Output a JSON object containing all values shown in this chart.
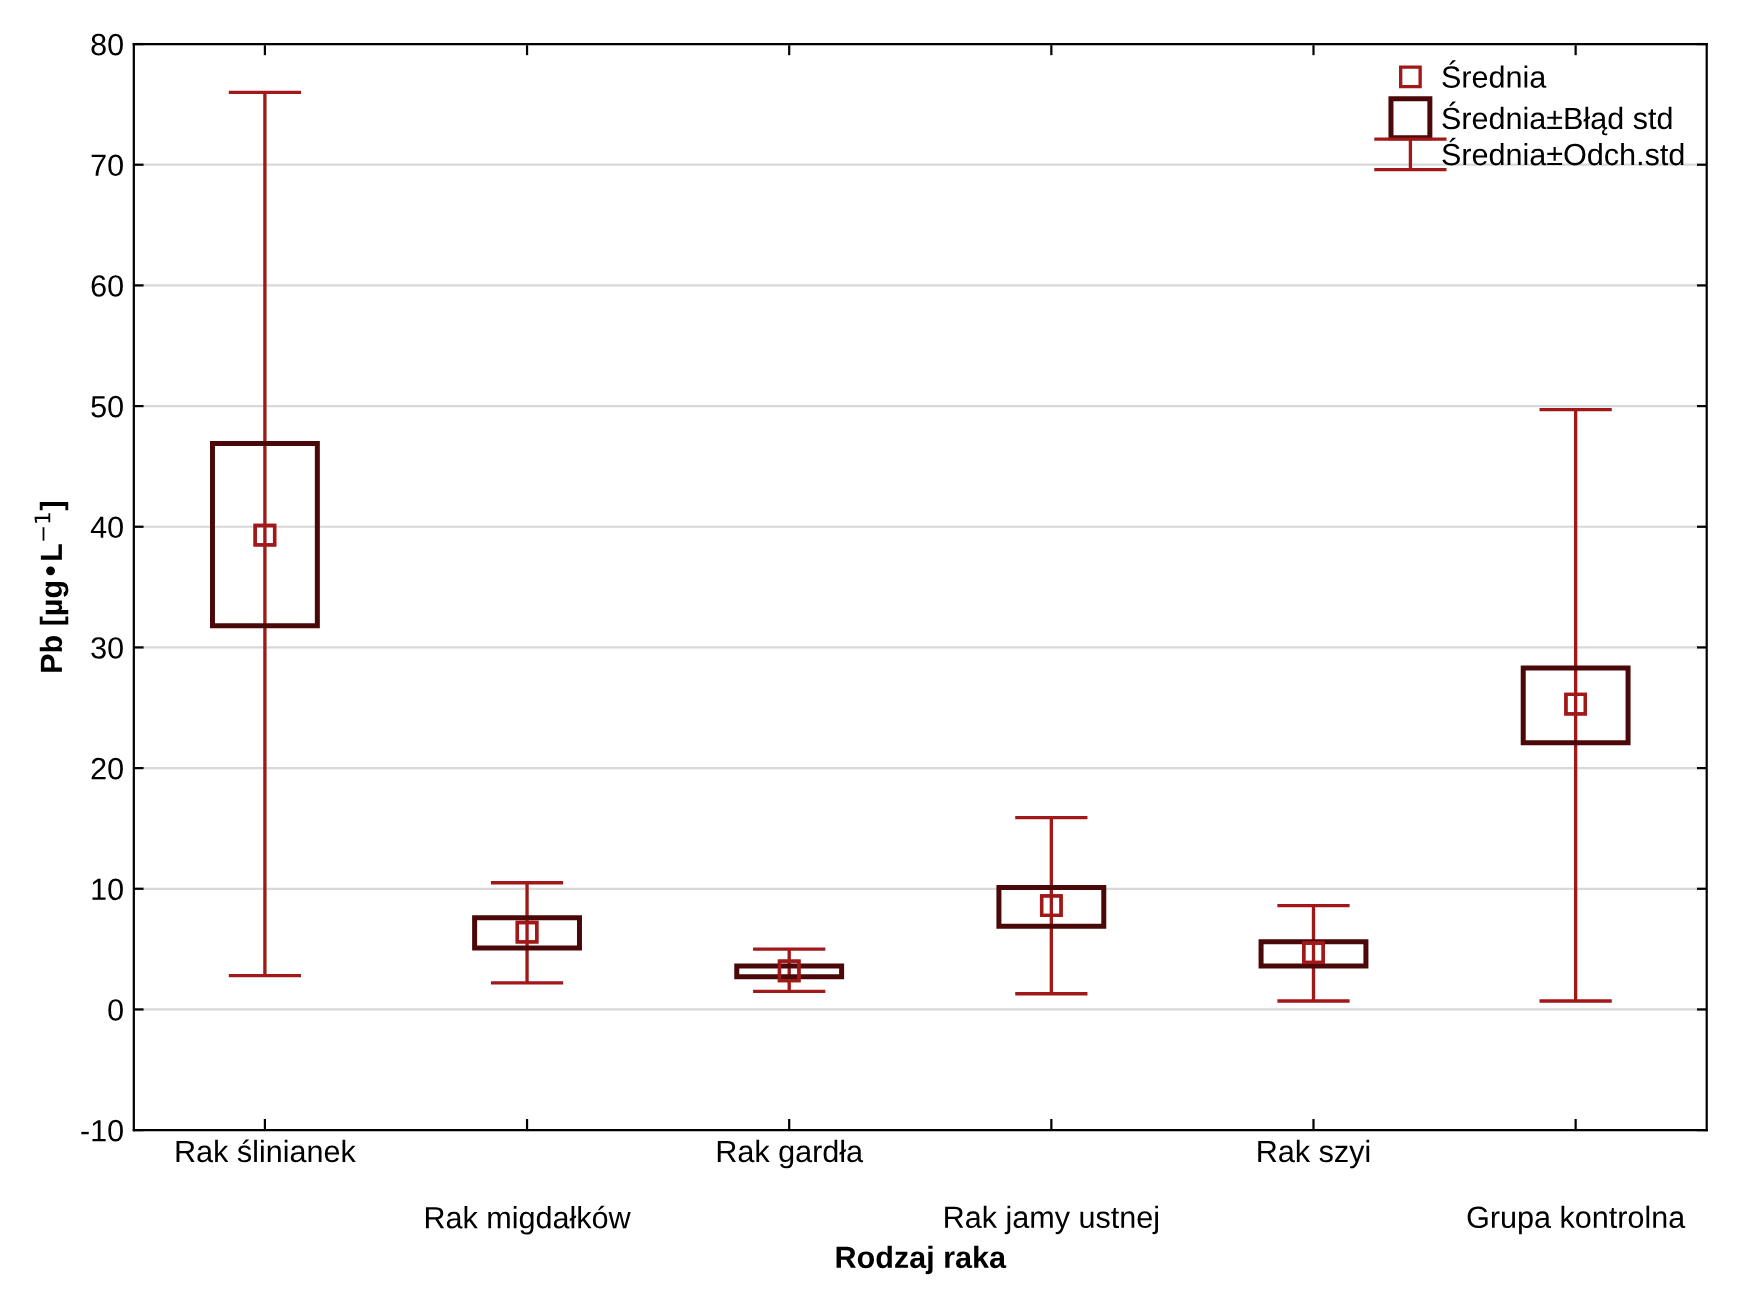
{
  "chart_data": {
    "type": "scatter",
    "xlabel": "Rodzaj raka",
    "ylabel": "Pb [µg•L$^{−1}$]",
    "categories": [
      "Rak ślinianek",
      "Rak migdałków",
      "Rak gardła",
      "Rak jamy ustnej",
      "Rak szyi",
      "Grupa kontrolna"
    ],
    "series": [
      {
        "name": "Średnia",
        "marker": "square",
        "color": "#a01818",
        "values": [
          39.3,
          6.4,
          3.2,
          8.6,
          4.7,
          25.3
        ]
      },
      {
        "name": "Średnia±Błąd std",
        "type": "bar",
        "color": "#4a0808",
        "base": [
          31.8,
          5.1,
          2.7,
          6.9,
          3.6,
          22.1
        ],
        "values": [
          15.1,
          2.5,
          0.9,
          3.2,
          2.0,
          6.2
        ]
      },
      {
        "name": "Średnia±Odch.std",
        "type": "scatter",
        "marker": "square",
        "color": "#a01818",
        "values": [
          39.3,
          6.4,
          3.2,
          8.6,
          4.7,
          25.3
        ],
        "errors": [
          [
            2.8,
            76.0
          ],
          [
            2.2,
            10.5
          ],
          [
            1.5,
            5.0
          ],
          [
            1.3,
            15.9
          ],
          [
            0.7,
            8.6
          ],
          [
            0.7,
            49.7
          ]
        ]
      }
    ],
    "ylim": [
      -10,
      80
    ],
    "yticks": [
      -10,
      0,
      10,
      20,
      30,
      40,
      50,
      60,
      70,
      80
    ],
    "grid": "y",
    "legend": "top right"
  }
}
